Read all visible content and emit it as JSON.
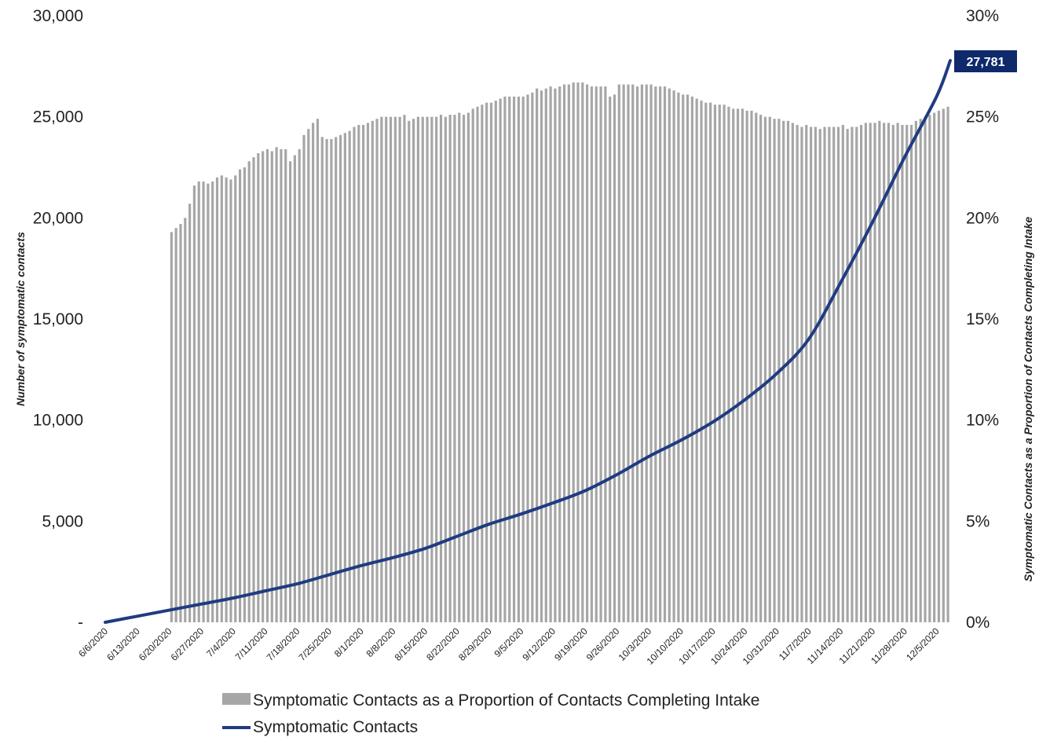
{
  "chart_data": {
    "type": "bar",
    "title": "",
    "xlabel": "",
    "ylabel": "Number of symptomatic contacts",
    "y2label": "Symptomatic Contacts as a Proportion of Contacts Completing Intake",
    "ylim": [
      0,
      30000
    ],
    "y2lim": [
      0,
      0.3
    ],
    "yticks": [
      "-",
      "5,000",
      "10,000",
      "15,000",
      "20,000",
      "25,000",
      "30,000"
    ],
    "y2ticks": [
      "0%",
      "5%",
      "10%",
      "15%",
      "20%",
      "25%",
      "30%"
    ],
    "x_start": "2020-06-06",
    "x_end": "2020-12-08",
    "x_tick_labels": [
      "6/6/2020",
      "6/13/2020",
      "6/20/2020",
      "6/27/2020",
      "7/4/2020",
      "7/11/2020",
      "7/18/2020",
      "7/25/2020",
      "8/1/2020",
      "8/8/2020",
      "8/15/2020",
      "8/22/2020",
      "8/29/2020",
      "9/5/2020",
      "9/12/2020",
      "9/19/2020",
      "9/26/2020",
      "10/3/2020",
      "10/10/2020",
      "10/17/2020",
      "10/24/2020",
      "10/31/2020",
      "11/7/2020",
      "11/14/2020",
      "11/21/2020",
      "11/28/2020",
      "12/5/2020"
    ],
    "grid": false,
    "legend_position": "bottom",
    "bar_color": "#a6a6a6",
    "line_color": "#1f3b82",
    "callout_color": "#0f2a6b",
    "series": [
      {
        "name": "Symptomatic Contacts as a Proportion of Contacts Completing Intake",
        "type": "bar",
        "axis": "right",
        "values": [
          0.193,
          0.195,
          0.197,
          0.2,
          0.207,
          0.216,
          0.218,
          0.218,
          0.217,
          0.218,
          0.22,
          0.221,
          0.22,
          0.219,
          0.221,
          0.224,
          0.225,
          0.228,
          0.23,
          0.232,
          0.233,
          0.234,
          0.233,
          0.235,
          0.234,
          0.234,
          0.228,
          0.231,
          0.234,
          0.241,
          0.244,
          0.247,
          0.249,
          0.24,
          0.239,
          0.239,
          0.24,
          0.241,
          0.242,
          0.243,
          0.245,
          0.246,
          0.246,
          0.247,
          0.248,
          0.249,
          0.25,
          0.25,
          0.25,
          0.25,
          0.25,
          0.251,
          0.248,
          0.249,
          0.25,
          0.25,
          0.25,
          0.25,
          0.25,
          0.251,
          0.25,
          0.251,
          0.251,
          0.252,
          0.251,
          0.252,
          0.254,
          0.255,
          0.256,
          0.257,
          0.257,
          0.258,
          0.259,
          0.26,
          0.26,
          0.26,
          0.26,
          0.26,
          0.261,
          0.262,
          0.264,
          0.263,
          0.264,
          0.265,
          0.264,
          0.265,
          0.266,
          0.266,
          0.267,
          0.267,
          0.267,
          0.266,
          0.265,
          0.265,
          0.265,
          0.265,
          0.26,
          0.261,
          0.266,
          0.266,
          0.266,
          0.266,
          0.265,
          0.266,
          0.266,
          0.266,
          0.265,
          0.265,
          0.265,
          0.264,
          0.263,
          0.262,
          0.261,
          0.261,
          0.26,
          0.259,
          0.258,
          0.257,
          0.257,
          0.256,
          0.256,
          0.256,
          0.255,
          0.254,
          0.254,
          0.254,
          0.253,
          0.253,
          0.252,
          0.251,
          0.25,
          0.25,
          0.249,
          0.249,
          0.248,
          0.248,
          0.247,
          0.246,
          0.245,
          0.246,
          0.245,
          0.245,
          0.244,
          0.245,
          0.245,
          0.245,
          0.245,
          0.246,
          0.244,
          0.245,
          0.245,
          0.246,
          0.247,
          0.247,
          0.247,
          0.248,
          0.247,
          0.247,
          0.246,
          0.247,
          0.246,
          0.246,
          0.246,
          0.248,
          0.249,
          0.25,
          0.251,
          0.252,
          0.253,
          0.254,
          0.255
        ]
      },
      {
        "name": "Symptomatic Contacts",
        "type": "line",
        "axis": "left",
        "points": [
          [
            "2020-06-06",
            0
          ],
          [
            "2020-06-13",
            300
          ],
          [
            "2020-06-20",
            600
          ],
          [
            "2020-06-27",
            900
          ],
          [
            "2020-07-04",
            1200
          ],
          [
            "2020-07-11",
            1550
          ],
          [
            "2020-07-18",
            1900
          ],
          [
            "2020-07-25",
            2350
          ],
          [
            "2020-08-01",
            2800
          ],
          [
            "2020-08-08",
            3200
          ],
          [
            "2020-08-15",
            3650
          ],
          [
            "2020-08-22",
            4250
          ],
          [
            "2020-08-29",
            4850
          ],
          [
            "2020-09-05",
            5350
          ],
          [
            "2020-09-12",
            5900
          ],
          [
            "2020-09-19",
            6500
          ],
          [
            "2020-09-26",
            7300
          ],
          [
            "2020-10-03",
            8200
          ],
          [
            "2020-10-10",
            9000
          ],
          [
            "2020-10-17",
            9900
          ],
          [
            "2020-10-24",
            11000
          ],
          [
            "2020-10-31",
            12300
          ],
          [
            "2020-11-07",
            14000
          ],
          [
            "2020-11-14",
            16800
          ],
          [
            "2020-11-21",
            19800
          ],
          [
            "2020-11-28",
            23000
          ],
          [
            "2020-12-05",
            26000
          ],
          [
            "2020-12-08",
            27781
          ]
        ]
      }
    ],
    "annotations": [
      {
        "text": "27,781",
        "date": "2020-12-08",
        "value": 27781
      }
    ]
  }
}
